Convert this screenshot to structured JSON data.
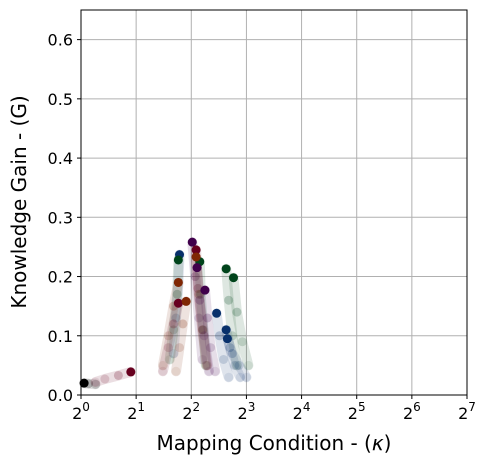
{
  "chart_data": {
    "type": "scatter",
    "xlabel": "Mapping Condition - (κ)",
    "ylabel": "Knowledge Gain - (G)",
    "x_scale": "log2",
    "xlim": [
      1,
      128
    ],
    "ylim": [
      0,
      0.65
    ],
    "x_ticks": [
      1,
      2,
      4,
      8,
      16,
      32,
      64,
      128
    ],
    "x_tick_labels": [
      {
        "base": "2",
        "exp": "0"
      },
      {
        "base": "2",
        "exp": "1"
      },
      {
        "base": "2",
        "exp": "2"
      },
      {
        "base": "2",
        "exp": "3"
      },
      {
        "base": "2",
        "exp": "4"
      },
      {
        "base": "2",
        "exp": "5"
      },
      {
        "base": "2",
        "exp": "6"
      },
      {
        "base": "2",
        "exp": "7"
      }
    ],
    "y_ticks": [
      0.0,
      0.1,
      0.2,
      0.3,
      0.4,
      0.5,
      0.6
    ],
    "y_tick_labels": [
      "0.0",
      "0.1",
      "0.2",
      "0.3",
      "0.4",
      "0.5",
      "0.6"
    ],
    "grid": true,
    "trails": [
      {
        "color": "#000000",
        "points": [
          [
            1.04,
            0.02
          ],
          [
            1.1,
            0.019
          ],
          [
            1.2,
            0.018
          ]
        ]
      },
      {
        "color": "#67001f",
        "points": [
          [
            1.87,
            0.039
          ],
          [
            1.6,
            0.033
          ],
          [
            1.35,
            0.027
          ],
          [
            1.2,
            0.022
          ]
        ]
      },
      {
        "color": "#40004b",
        "points": [
          [
            4.05,
            0.258
          ],
          [
            4.2,
            0.2
          ],
          [
            4.4,
            0.13
          ],
          [
            4.6,
            0.06
          ]
        ]
      },
      {
        "color": "#67001f",
        "points": [
          [
            4.25,
            0.245
          ],
          [
            4.35,
            0.18
          ],
          [
            4.6,
            0.11
          ],
          [
            4.9,
            0.05
          ]
        ]
      },
      {
        "color": "#08306b",
        "points": [
          [
            3.45,
            0.237
          ],
          [
            3.4,
            0.19
          ],
          [
            3.3,
            0.13
          ],
          [
            3.2,
            0.07
          ]
        ]
      },
      {
        "color": "#00441b",
        "points": [
          [
            3.4,
            0.228
          ],
          [
            3.35,
            0.17
          ],
          [
            3.2,
            0.11
          ],
          [
            3.05,
            0.06
          ]
        ]
      },
      {
        "color": "#00441b",
        "points": [
          [
            4.45,
            0.225
          ],
          [
            4.5,
            0.17
          ],
          [
            4.65,
            0.11
          ],
          [
            4.8,
            0.05
          ]
        ]
      },
      {
        "color": "#7f2704",
        "points": [
          [
            4.25,
            0.233
          ],
          [
            4.4,
            0.17
          ],
          [
            4.6,
            0.11
          ],
          [
            4.85,
            0.05
          ]
        ]
      },
      {
        "color": "#40004b",
        "points": [
          [
            4.3,
            0.215
          ],
          [
            4.45,
            0.16
          ],
          [
            4.7,
            0.1
          ],
          [
            5.0,
            0.04
          ]
        ]
      },
      {
        "color": "#7f2704",
        "points": [
          [
            3.4,
            0.19
          ],
          [
            3.2,
            0.15
          ],
          [
            3.0,
            0.1
          ],
          [
            2.8,
            0.05
          ]
        ]
      },
      {
        "color": "#67001f",
        "points": [
          [
            3.4,
            0.155
          ],
          [
            3.2,
            0.12
          ],
          [
            3.0,
            0.08
          ],
          [
            2.8,
            0.04
          ]
        ]
      },
      {
        "color": "#7f2704",
        "points": [
          [
            3.75,
            0.158
          ],
          [
            3.6,
            0.12
          ],
          [
            3.45,
            0.08
          ],
          [
            3.3,
            0.04
          ]
        ]
      },
      {
        "color": "#40004b",
        "points": [
          [
            4.75,
            0.177
          ],
          [
            4.9,
            0.13
          ],
          [
            5.1,
            0.08
          ],
          [
            5.4,
            0.04
          ]
        ]
      },
      {
        "color": "#08306b",
        "points": [
          [
            5.5,
            0.138
          ],
          [
            5.7,
            0.1
          ],
          [
            6.0,
            0.06
          ],
          [
            6.4,
            0.03
          ]
        ]
      },
      {
        "color": "#00441b",
        "points": [
          [
            6.2,
            0.213
          ],
          [
            6.4,
            0.16
          ],
          [
            6.7,
            0.1
          ],
          [
            7.1,
            0.05
          ]
        ]
      },
      {
        "color": "#00441b",
        "points": [
          [
            6.8,
            0.198
          ],
          [
            7.1,
            0.14
          ],
          [
            7.6,
            0.09
          ],
          [
            8.2,
            0.05
          ]
        ]
      },
      {
        "color": "#08306b",
        "points": [
          [
            6.2,
            0.11
          ],
          [
            6.5,
            0.08
          ],
          [
            6.9,
            0.05
          ],
          [
            7.4,
            0.03
          ]
        ]
      },
      {
        "color": "#08306b",
        "points": [
          [
            6.3,
            0.095
          ],
          [
            6.7,
            0.07
          ],
          [
            7.3,
            0.05
          ],
          [
            8.0,
            0.03
          ]
        ]
      }
    ]
  }
}
